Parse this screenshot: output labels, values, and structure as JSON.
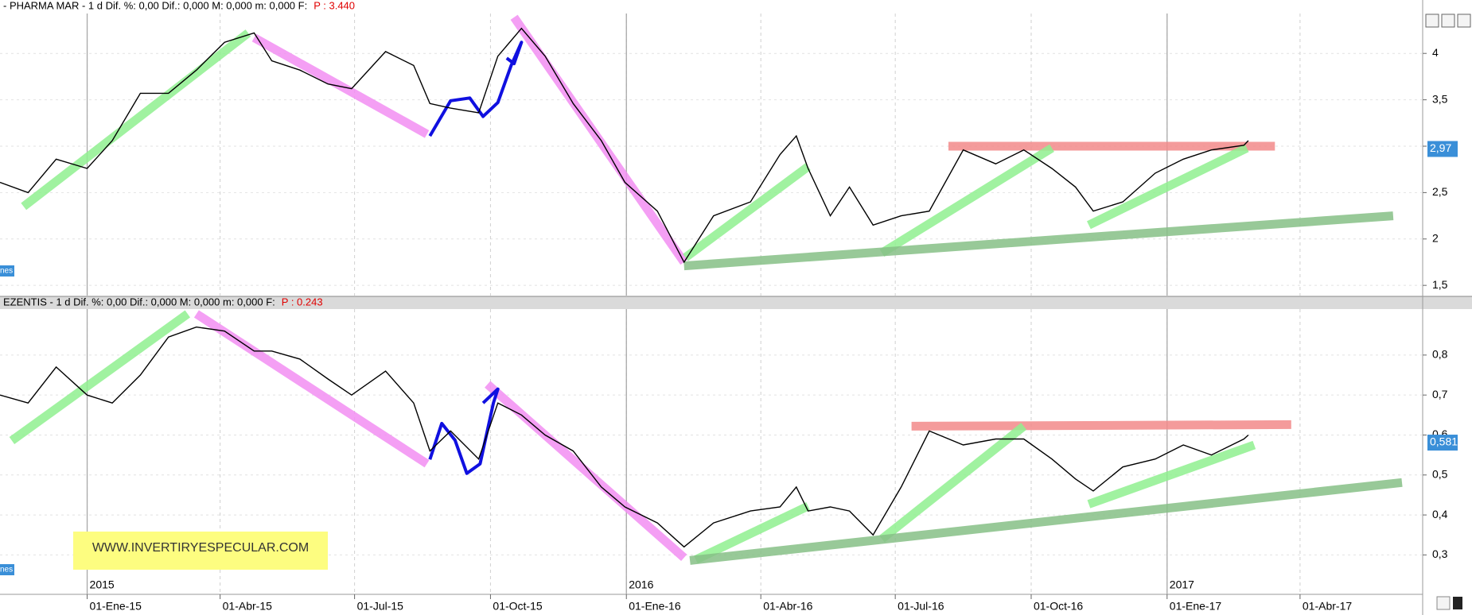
{
  "chart_data": [
    {
      "type": "line",
      "title": "- PHARMA MAR -  1 d Dif. %: 0,00 Dif.: 0,000 M: 0,000 m: 0,000 F:",
      "price_label": "P : 3.440",
      "side_tag": "nes",
      "xlim": [
        "2014-11-03",
        "2017-06-23"
      ],
      "x": [
        "2014-11-03",
        "2014-11-22",
        "2014-12-11",
        "2015-01-01",
        "2015-01-18",
        "2015-02-06",
        "2015-02-25",
        "2015-03-16",
        "2015-04-04",
        "2015-04-24",
        "2015-05-06",
        "2015-05-25",
        "2015-06-13",
        "2015-06-29",
        "2015-07-22",
        "2015-08-10",
        "2015-08-21",
        "2015-09-04",
        "2015-09-23",
        "2015-10-06",
        "2015-10-22",
        "2015-11-07",
        "2015-11-26",
        "2015-12-15",
        "2015-12-31",
        "2016-01-22",
        "2016-02-09",
        "2016-02-29",
        "2016-03-25",
        "2016-04-14",
        "2016-04-25",
        "2016-05-03",
        "2016-05-18",
        "2016-05-31",
        "2016-06-16",
        "2016-07-05",
        "2016-07-24",
        "2016-08-16",
        "2016-09-07",
        "2016-09-26",
        "2016-10-15",
        "2016-10-31",
        "2016-11-12",
        "2016-12-02",
        "2016-12-24",
        "2017-01-12",
        "2017-01-31",
        "2017-02-22",
        "2017-02-25"
      ],
      "values": [
        2.61,
        2.5,
        2.86,
        2.76,
        3.06,
        3.57,
        3.57,
        3.82,
        4.12,
        4.22,
        3.92,
        3.82,
        3.67,
        3.62,
        4.02,
        3.87,
        3.46,
        3.41,
        3.36,
        3.97,
        4.27,
        3.97,
        3.46,
        3.06,
        2.61,
        2.3,
        1.75,
        2.25,
        2.4,
        2.91,
        3.11,
        2.76,
        2.25,
        2.56,
        2.15,
        2.25,
        2.3,
        2.96,
        2.81,
        2.96,
        2.76,
        2.56,
        2.3,
        2.4,
        2.71,
        2.86,
        2.96,
        3.01,
        3.06
      ],
      "color": "#000000",
      "ylim": [
        1.39,
        4.43
      ],
      "yticks": [
        4,
        {
          "value": 3.5,
          "label": "3,5"
        },
        3,
        {
          "value": 2.5,
          "label": "2,5"
        },
        2,
        {
          "value": 1.5,
          "label": "1,5"
        }
      ],
      "grid": true,
      "last_value": {
        "value": 2.97,
        "label": "2,97"
      },
      "trend_lines": [
        {
          "color": "#8ff08f",
          "x": [
            "2014-11-19",
            "2015-04-20"
          ],
          "values": [
            2.35,
            4.22
          ]
        },
        {
          "color": "#f28ef2",
          "x": [
            "2015-04-24",
            "2015-08-19"
          ],
          "values": [
            4.17,
            3.13
          ]
        },
        {
          "color": "#f28ef2",
          "x": [
            "2015-10-17",
            "2016-02-09"
          ],
          "values": [
            4.39,
            1.75
          ]
        },
        {
          "color": "#8ff08f",
          "x": [
            "2016-02-10",
            "2016-05-03"
          ],
          "values": [
            1.8,
            2.78
          ]
        },
        {
          "color": "#f28a8a",
          "x": [
            "2016-08-06",
            "2017-03-15"
          ],
          "values": [
            3.0,
            3.0
          ]
        },
        {
          "color": "#8ff08f",
          "x": [
            "2016-06-22",
            "2016-10-15"
          ],
          "values": [
            1.85,
            2.98
          ]
        },
        {
          "color": "#8ff08f",
          "x": [
            "2016-11-09",
            "2017-02-24"
          ],
          "values": [
            2.15,
            2.98
          ]
        },
        {
          "color": "#86c086",
          "x": [
            "2016-02-09",
            "2017-06-03"
          ],
          "values": [
            1.71,
            2.25
          ]
        },
        {
          "color": "#1010e0",
          "x": [
            "2015-08-21",
            "2015-09-04",
            "2015-09-17",
            "2015-09-26",
            "2015-10-06",
            "2015-10-15",
            "2015-10-22",
            "2015-10-17",
            "2015-10-12"
          ],
          "values": [
            3.11,
            3.49,
            3.52,
            3.32,
            3.47,
            3.87,
            4.12,
            3.89,
            3.95
          ]
        }
      ]
    },
    {
      "type": "line",
      "title": "EZENTIS -  1 d Dif. %: 0,00 Dif.: 0,000 M: 0,000 m: 0,000 F:",
      "price_label": "P : 0.243",
      "side_tag": "nes",
      "xlim": [
        "2014-11-03",
        "2017-06-23"
      ],
      "x": [
        "2014-11-03",
        "2014-11-22",
        "2014-12-11",
        "2015-01-01",
        "2015-01-18",
        "2015-02-06",
        "2015-02-25",
        "2015-03-16",
        "2015-04-04",
        "2015-04-24",
        "2015-05-06",
        "2015-05-25",
        "2015-06-13",
        "2015-06-29",
        "2015-07-22",
        "2015-08-10",
        "2015-08-21",
        "2015-09-04",
        "2015-09-23",
        "2015-10-06",
        "2015-10-22",
        "2015-11-07",
        "2015-11-26",
        "2015-12-15",
        "2015-12-31",
        "2016-01-22",
        "2016-02-09",
        "2016-02-29",
        "2016-03-25",
        "2016-04-14",
        "2016-04-25",
        "2016-05-03",
        "2016-05-18",
        "2016-05-31",
        "2016-06-16",
        "2016-07-05",
        "2016-07-24",
        "2016-08-16",
        "2016-09-07",
        "2016-09-26",
        "2016-10-15",
        "2016-10-31",
        "2016-11-12",
        "2016-12-02",
        "2016-12-24",
        "2017-01-12",
        "2017-01-31",
        "2017-02-22",
        "2017-02-25"
      ],
      "values": [
        0.7,
        0.68,
        0.77,
        0.7,
        0.68,
        0.75,
        0.845,
        0.87,
        0.86,
        0.81,
        0.81,
        0.79,
        0.74,
        0.7,
        0.76,
        0.68,
        0.56,
        0.61,
        0.54,
        0.68,
        0.65,
        0.6,
        0.56,
        0.47,
        0.42,
        0.38,
        0.32,
        0.38,
        0.41,
        0.42,
        0.47,
        0.41,
        0.42,
        0.41,
        0.35,
        0.47,
        0.61,
        0.575,
        0.59,
        0.59,
        0.54,
        0.49,
        0.46,
        0.52,
        0.54,
        0.575,
        0.55,
        0.59,
        0.6
      ],
      "color": "#000000",
      "ylim": [
        0.2014,
        0.915
      ],
      "yticks": [
        {
          "value": 0.8,
          "label": "0,8"
        },
        {
          "value": 0.7,
          "label": "0,7"
        },
        {
          "value": 0.6,
          "label": "0,6"
        },
        {
          "value": 0.5,
          "label": "0,5"
        },
        {
          "value": 0.4,
          "label": "0,4"
        },
        {
          "value": 0.3,
          "label": "0,3"
        }
      ],
      "grid": true,
      "last_value": {
        "value": 0.581,
        "label": "0,581"
      },
      "trend_lines": [
        {
          "color": "#8ff08f",
          "x": [
            "2014-11-11",
            "2015-03-10"
          ],
          "values": [
            0.586,
            0.903
          ]
        },
        {
          "color": "#f28ef2",
          "x": [
            "2015-03-16",
            "2015-08-19"
          ],
          "values": [
            0.903,
            0.528
          ]
        },
        {
          "color": "#f28ef2",
          "x": [
            "2015-09-29",
            "2016-02-09"
          ],
          "values": [
            0.727,
            0.293
          ]
        },
        {
          "color": "#8ff08f",
          "x": [
            "2016-02-17",
            "2016-05-03"
          ],
          "values": [
            0.288,
            0.422
          ]
        },
        {
          "color": "#f28a8a",
          "x": [
            "2016-07-12",
            "2017-03-26"
          ],
          "values": [
            0.622,
            0.626
          ]
        },
        {
          "color": "#8ff08f",
          "x": [
            "2016-06-22",
            "2016-09-26"
          ],
          "values": [
            0.34,
            0.622
          ]
        },
        {
          "color": "#8ff08f",
          "x": [
            "2016-11-09",
            "2017-03-01"
          ],
          "values": [
            0.427,
            0.575
          ]
        },
        {
          "color": "#86c086",
          "x": [
            "2016-02-13",
            "2017-06-09"
          ],
          "values": [
            0.286,
            0.481
          ]
        },
        {
          "color": "#1010e0",
          "x": [
            "2015-08-21",
            "2015-08-29",
            "2015-09-07",
            "2015-09-15",
            "2015-09-24",
            "2015-10-03",
            "2015-10-06",
            "2015-09-26"
          ],
          "values": [
            0.539,
            0.629,
            0.587,
            0.504,
            0.528,
            0.68,
            0.715,
            0.68
          ]
        }
      ],
      "xticks": [
        {
          "value": "2015-01-01",
          "label": "01-Ene-15"
        },
        {
          "value": "2015-04-01",
          "label": "01-Abr-15"
        },
        {
          "value": "2015-07-01",
          "label": "01-Jul-15"
        },
        {
          "value": "2015-10-01",
          "label": "01-Oct-15"
        },
        {
          "value": "2016-01-01",
          "label": "01-Ene-16"
        },
        {
          "value": "2016-04-01",
          "label": "01-Abr-16"
        },
        {
          "value": "2016-07-01",
          "label": "01-Jul-16"
        },
        {
          "value": "2016-10-01",
          "label": "01-Oct-16"
        },
        {
          "value": "2017-01-01",
          "label": "01-Ene-17"
        },
        {
          "value": "2017-04-01",
          "label": "01-Abr-17"
        }
      ],
      "year_ticks": [
        {
          "value": "2015-01-01",
          "label": "2015"
        },
        {
          "value": "2016-01-01",
          "label": "2016"
        },
        {
          "value": "2017-01-01",
          "label": "2017"
        }
      ],
      "watermark": "WWW.INVERTIRYESPECULAR.COM"
    }
  ]
}
